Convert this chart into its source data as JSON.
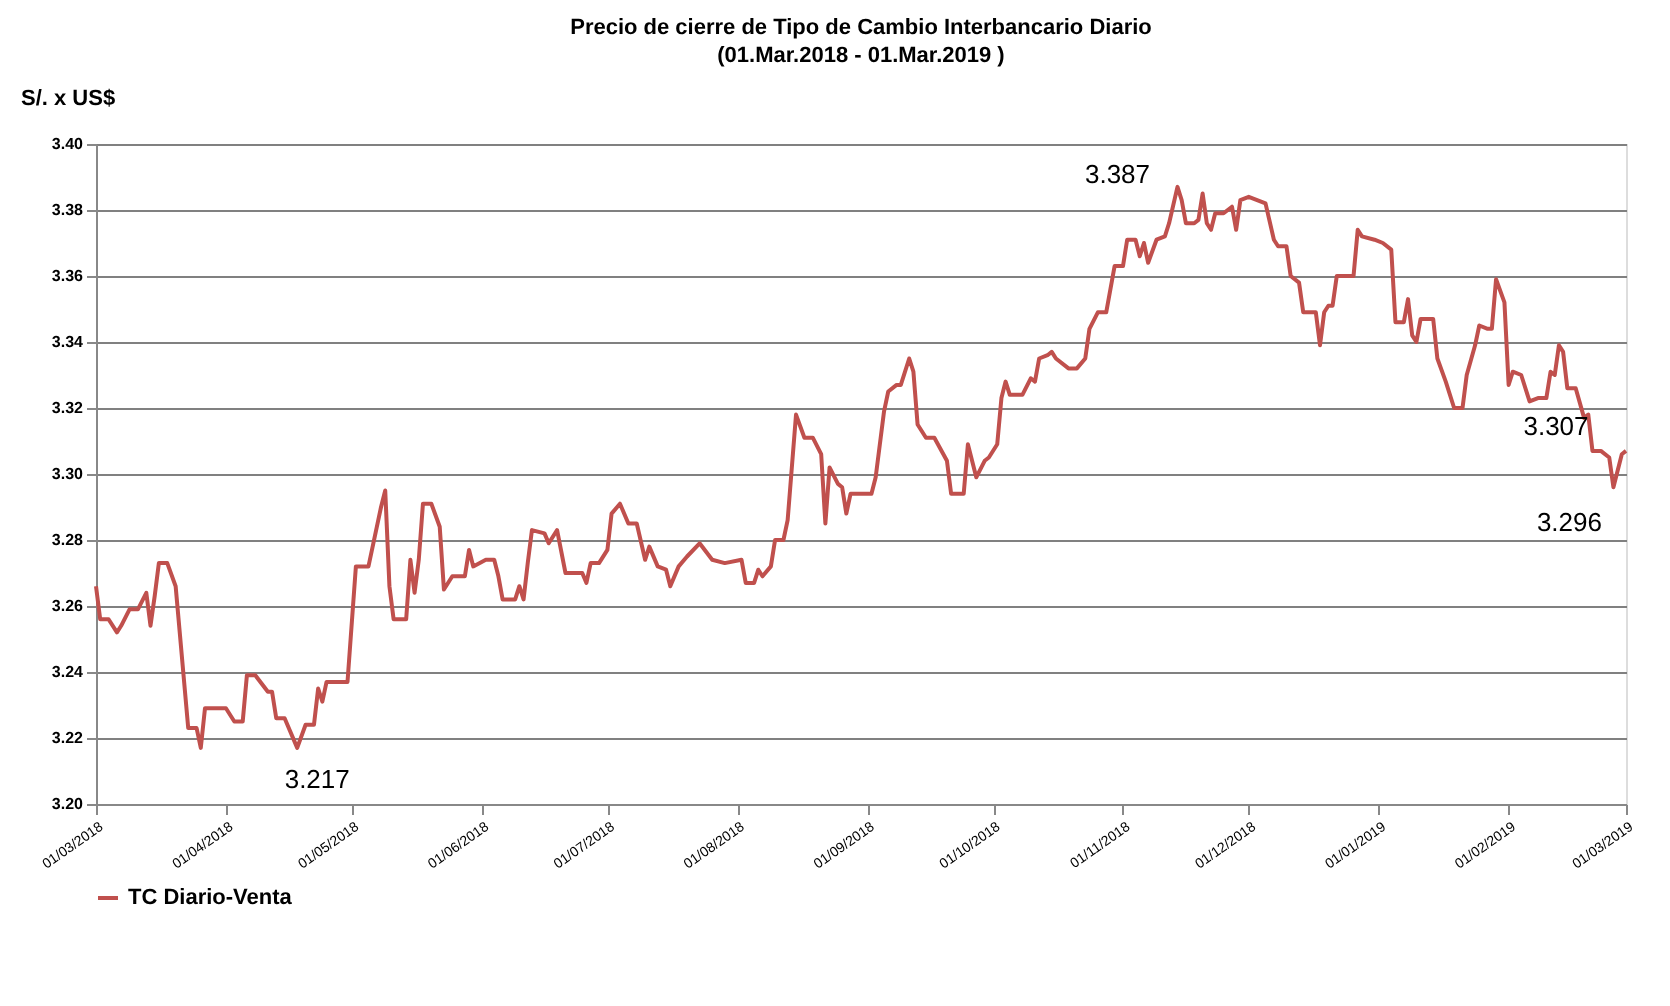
{
  "chart_data": {
    "type": "line",
    "title": "Precio de cierre de Tipo de Cambio Interbancario Diario",
    "subtitle": "(01.Mar.2018 - 01.Mar.2019 )",
    "ylabel": "S/. x US$",
    "x": [
      "2018-03-01",
      "2018-03-02",
      "2018-03-04",
      "2018-03-06",
      "2018-03-07",
      "2018-03-09",
      "2018-03-11",
      "2018-03-13",
      "2018-03-14",
      "2018-03-15",
      "2018-03-16",
      "2018-03-18",
      "2018-03-20",
      "2018-03-23",
      "2018-03-25",
      "2018-03-26",
      "2018-03-27",
      "2018-04-01",
      "2018-04-03",
      "2018-04-05",
      "2018-04-06",
      "2018-04-08",
      "2018-04-11",
      "2018-04-12",
      "2018-04-13",
      "2018-04-15",
      "2018-04-18",
      "2018-04-20",
      "2018-04-22",
      "2018-04-23",
      "2018-04-24",
      "2018-04-25",
      "2018-04-30",
      "2018-05-02",
      "2018-05-05",
      "2018-05-08",
      "2018-05-09",
      "2018-05-10",
      "2018-05-11",
      "2018-05-14",
      "2018-05-15",
      "2018-05-16",
      "2018-05-17",
      "2018-05-18",
      "2018-05-20",
      "2018-05-22",
      "2018-05-23",
      "2018-05-25",
      "2018-05-28",
      "2018-05-29",
      "2018-05-30",
      "2018-06-02",
      "2018-06-04",
      "2018-06-05",
      "2018-06-06",
      "2018-06-09",
      "2018-06-10",
      "2018-06-11",
      "2018-06-12",
      "2018-06-13",
      "2018-06-16",
      "2018-06-17",
      "2018-06-19",
      "2018-06-21",
      "2018-06-25",
      "2018-06-26",
      "2018-06-27",
      "2018-06-29",
      "2018-07-01",
      "2018-07-02",
      "2018-07-04",
      "2018-07-06",
      "2018-07-08",
      "2018-07-10",
      "2018-07-11",
      "2018-07-13",
      "2018-07-15",
      "2018-07-16",
      "2018-07-18",
      "2018-07-20",
      "2018-07-23",
      "2018-07-26",
      "2018-07-29",
      "2018-08-02",
      "2018-08-03",
      "2018-08-05",
      "2018-08-06",
      "2018-08-07",
      "2018-08-09",
      "2018-08-10",
      "2018-08-12",
      "2018-08-13",
      "2018-08-15",
      "2018-08-17",
      "2018-08-19",
      "2018-08-21",
      "2018-08-22",
      "2018-08-23",
      "2018-08-25",
      "2018-08-26",
      "2018-08-27",
      "2018-08-28",
      "2018-09-02",
      "2018-09-03",
      "2018-09-05",
      "2018-09-06",
      "2018-09-08",
      "2018-09-09",
      "2018-09-11",
      "2018-09-12",
      "2018-09-13",
      "2018-09-15",
      "2018-09-17",
      "2018-09-20",
      "2018-09-21",
      "2018-09-24",
      "2018-09-25",
      "2018-09-27",
      "2018-09-29",
      "2018-09-30",
      "2018-10-02",
      "2018-10-03",
      "2018-10-04",
      "2018-10-05",
      "2018-10-08",
      "2018-10-10",
      "2018-10-11",
      "2018-10-12",
      "2018-10-14",
      "2018-10-15",
      "2018-10-16",
      "2018-10-19",
      "2018-10-21",
      "2018-10-23",
      "2018-10-24",
      "2018-10-26",
      "2018-10-28",
      "2018-10-30",
      "2018-11-01",
      "2018-11-02",
      "2018-11-04",
      "2018-11-05",
      "2018-11-06",
      "2018-11-07",
      "2018-11-09",
      "2018-11-11",
      "2018-11-12",
      "2018-11-14",
      "2018-11-15",
      "2018-11-16",
      "2018-11-18",
      "2018-11-19",
      "2018-11-20",
      "2018-11-21",
      "2018-11-22",
      "2018-11-23",
      "2018-11-25",
      "2018-11-27",
      "2018-11-28",
      "2018-11-29",
      "2018-12-01",
      "2018-12-03",
      "2018-12-05",
      "2018-12-07",
      "2018-12-08",
      "2018-12-10",
      "2018-12-11",
      "2018-12-13",
      "2018-12-14",
      "2018-12-17",
      "2018-12-18",
      "2018-12-19",
      "2018-12-20",
      "2018-12-21",
      "2018-12-22",
      "2018-12-26",
      "2018-12-27",
      "2018-12-28",
      "2018-12-31",
      "2019-01-02",
      "2019-01-04",
      "2019-01-05",
      "2019-01-07",
      "2019-01-08",
      "2019-01-09",
      "2019-01-10",
      "2019-01-11",
      "2019-01-14",
      "2019-01-15",
      "2019-01-17",
      "2019-01-19",
      "2019-01-21",
      "2019-01-22",
      "2019-01-24",
      "2019-01-25",
      "2019-01-27",
      "2019-01-28",
      "2019-01-29",
      "2019-01-31",
      "2019-02-01",
      "2019-02-02",
      "2019-02-04",
      "2019-02-06",
      "2019-02-08",
      "2019-02-10",
      "2019-02-11",
      "2019-02-12",
      "2019-02-13",
      "2019-02-14",
      "2019-02-15",
      "2019-02-17",
      "2019-02-19",
      "2019-02-20",
      "2019-02-21",
      "2019-02-23",
      "2019-02-25",
      "2019-02-26",
      "2019-02-28",
      "2019-03-01"
    ],
    "series": [
      {
        "name": "TC Diario-Venta",
        "color": "#c0504d",
        "values": [
          3.266,
          3.256,
          3.256,
          3.252,
          3.254,
          3.259,
          3.259,
          3.264,
          3.254,
          3.263,
          3.273,
          3.273,
          3.266,
          3.223,
          3.223,
          3.217,
          3.229,
          3.229,
          3.225,
          3.225,
          3.239,
          3.239,
          3.234,
          3.234,
          3.226,
          3.226,
          3.217,
          3.224,
          3.224,
          3.235,
          3.231,
          3.237,
          3.237,
          3.272,
          3.272,
          3.29,
          3.295,
          3.266,
          3.256,
          3.256,
          3.274,
          3.264,
          3.274,
          3.291,
          3.291,
          3.284,
          3.265,
          3.269,
          3.269,
          3.277,
          3.272,
          3.274,
          3.274,
          3.269,
          3.262,
          3.262,
          3.266,
          3.262,
          3.273,
          3.283,
          3.282,
          3.279,
          3.283,
          3.27,
          3.27,
          3.267,
          3.273,
          3.273,
          3.277,
          3.288,
          3.291,
          3.285,
          3.285,
          3.274,
          3.278,
          3.272,
          3.271,
          3.266,
          3.272,
          3.275,
          3.279,
          3.274,
          3.273,
          3.274,
          3.267,
          3.267,
          3.271,
          3.269,
          3.272,
          3.28,
          3.28,
          3.286,
          3.318,
          3.311,
          3.311,
          3.306,
          3.285,
          3.302,
          3.297,
          3.296,
          3.288,
          3.294,
          3.294,
          3.299,
          3.319,
          3.325,
          3.327,
          3.327,
          3.335,
          3.331,
          3.315,
          3.311,
          3.311,
          3.304,
          3.294,
          3.294,
          3.309,
          3.299,
          3.304,
          3.305,
          3.309,
          3.323,
          3.328,
          3.324,
          3.324,
          3.329,
          3.328,
          3.335,
          3.336,
          3.337,
          3.335,
          3.332,
          3.332,
          3.335,
          3.344,
          3.349,
          3.349,
          3.363,
          3.363,
          3.371,
          3.371,
          3.366,
          3.37,
          3.364,
          3.371,
          3.372,
          3.376,
          3.387,
          3.383,
          3.376,
          3.376,
          3.377,
          3.385,
          3.376,
          3.374,
          3.379,
          3.379,
          3.381,
          3.374,
          3.383,
          3.384,
          3.383,
          3.382,
          3.371,
          3.369,
          3.369,
          3.36,
          3.358,
          3.349,
          3.349,
          3.339,
          3.349,
          3.351,
          3.351,
          3.36,
          3.36,
          3.374,
          3.372,
          3.371,
          3.37,
          3.368,
          3.346,
          3.346,
          3.353,
          3.342,
          3.34,
          3.347,
          3.347,
          3.335,
          3.328,
          3.32,
          3.32,
          3.33,
          3.339,
          3.345,
          3.344,
          3.344,
          3.359,
          3.352,
          3.327,
          3.331,
          3.33,
          3.322,
          3.323,
          3.323,
          3.331,
          3.33,
          3.339,
          3.337,
          3.326,
          3.326,
          3.317,
          3.318,
          3.307,
          3.307,
          3.305,
          3.296,
          3.306,
          3.307
        ]
      }
    ],
    "xlim": [
      "2018-03-01",
      "2019-03-01"
    ],
    "xticks": [
      {
        "value": "2018-03-01",
        "label": "01/03/2018"
      },
      {
        "value": "2018-04-01",
        "label": "01/04/2018"
      },
      {
        "value": "2018-05-01",
        "label": "01/05/2018"
      },
      {
        "value": "2018-06-01",
        "label": "01/06/2018"
      },
      {
        "value": "2018-07-01",
        "label": "01/07/2018"
      },
      {
        "value": "2018-08-01",
        "label": "01/08/2018"
      },
      {
        "value": "2018-09-01",
        "label": "01/09/2018"
      },
      {
        "value": "2018-10-01",
        "label": "01/10/2018"
      },
      {
        "value": "2018-11-01",
        "label": "01/11/2018"
      },
      {
        "value": "2018-12-01",
        "label": "01/12/2018"
      },
      {
        "value": "2019-01-01",
        "label": "01/01/2019"
      },
      {
        "value": "2019-02-01",
        "label": "01/02/2019"
      },
      {
        "value": "2019-03-01",
        "label": "01/03/2019"
      }
    ],
    "ylim": [
      3.2,
      3.4
    ],
    "yticks": [
      {
        "value": 3.2,
        "label": "3.20"
      },
      {
        "value": 3.22,
        "label": "3.22"
      },
      {
        "value": 3.24,
        "label": "3.24"
      },
      {
        "value": 3.26,
        "label": "3.26"
      },
      {
        "value": 3.28,
        "label": "3.28"
      },
      {
        "value": 3.3,
        "label": "3.30"
      },
      {
        "value": 3.32,
        "label": "3.32"
      },
      {
        "value": 3.34,
        "label": "3.34"
      },
      {
        "value": 3.36,
        "label": "3.36"
      },
      {
        "value": 3.38,
        "label": "3.38"
      },
      {
        "value": 3.4,
        "label": "3.40"
      }
    ],
    "annotations": [
      {
        "text": "3.387",
        "x": "2018-11-14",
        "y": 3.387
      },
      {
        "text": "3.217",
        "x": "2018-04-18",
        "y": 3.217
      },
      {
        "text": "3.307",
        "x": "2019-03-01",
        "y": 3.307
      },
      {
        "text": "3.296",
        "x": "2019-02-26",
        "y": 3.296
      }
    ],
    "grid": "y",
    "legend": "bottom",
    "line_style": "solid"
  }
}
